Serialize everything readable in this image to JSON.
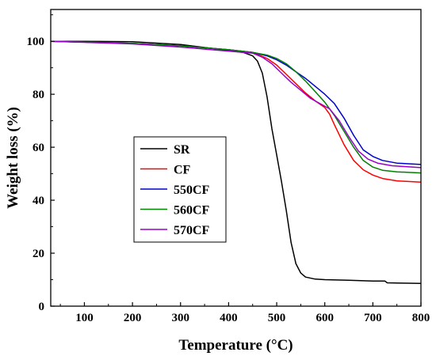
{
  "chart_data": {
    "type": "line",
    "title": "",
    "xlabel": "Temperature (°C)",
    "ylabel": "Weight loss (%)",
    "xlim": [
      30,
      800
    ],
    "ylim": [
      0,
      112
    ],
    "x_ticks": [
      100,
      200,
      300,
      400,
      500,
      600,
      700,
      800
    ],
    "y_ticks": [
      0,
      20,
      40,
      60,
      80,
      100
    ],
    "grid": false,
    "legend_position": "center-left",
    "series": [
      {
        "name": "SR",
        "color": "#000000",
        "points": [
          [
            30,
            100
          ],
          [
            100,
            100
          ],
          [
            200,
            99.8
          ],
          [
            300,
            98.8
          ],
          [
            400,
            96.5
          ],
          [
            430,
            95.8
          ],
          [
            450,
            94.5
          ],
          [
            460,
            92.5
          ],
          [
            470,
            88
          ],
          [
            480,
            79
          ],
          [
            490,
            67
          ],
          [
            500,
            57
          ],
          [
            510,
            47
          ],
          [
            520,
            36
          ],
          [
            530,
            24
          ],
          [
            540,
            16
          ],
          [
            550,
            12.5
          ],
          [
            560,
            11
          ],
          [
            580,
            10.2
          ],
          [
            600,
            10
          ],
          [
            650,
            9.8
          ],
          [
            700,
            9.5
          ],
          [
            725,
            9.5
          ],
          [
            730,
            8.8
          ],
          [
            760,
            8.7
          ],
          [
            800,
            8.6
          ]
        ]
      },
      {
        "name": "CF",
        "color": "#ff0000",
        "points": [
          [
            30,
            100
          ],
          [
            100,
            99.7
          ],
          [
            200,
            99.2
          ],
          [
            300,
            98.3
          ],
          [
            400,
            96.8
          ],
          [
            450,
            95.8
          ],
          [
            480,
            93.5
          ],
          [
            500,
            91
          ],
          [
            520,
            87.5
          ],
          [
            540,
            84
          ],
          [
            560,
            80.5
          ],
          [
            580,
            77.5
          ],
          [
            600,
            75
          ],
          [
            610,
            72.5
          ],
          [
            620,
            68.5
          ],
          [
            640,
            61
          ],
          [
            660,
            55
          ],
          [
            680,
            51.5
          ],
          [
            700,
            49.5
          ],
          [
            720,
            48.2
          ],
          [
            750,
            47.3
          ],
          [
            800,
            46.8
          ]
        ]
      },
      {
        "name": "550CF",
        "color": "#0000cc",
        "points": [
          [
            30,
            100
          ],
          [
            100,
            99.7
          ],
          [
            200,
            99.2
          ],
          [
            300,
            98.3
          ],
          [
            400,
            96.8
          ],
          [
            450,
            95.8
          ],
          [
            480,
            94.5
          ],
          [
            500,
            93
          ],
          [
            520,
            91
          ],
          [
            540,
            88.5
          ],
          [
            560,
            86
          ],
          [
            580,
            83
          ],
          [
            600,
            80
          ],
          [
            620,
            76.5
          ],
          [
            640,
            71
          ],
          [
            660,
            64.5
          ],
          [
            680,
            59
          ],
          [
            700,
            56.5
          ],
          [
            720,
            55
          ],
          [
            750,
            54
          ],
          [
            800,
            53.5
          ]
        ]
      },
      {
        "name": "560CF",
        "color": "#008000",
        "points": [
          [
            30,
            100
          ],
          [
            100,
            99.7
          ],
          [
            200,
            99.2
          ],
          [
            300,
            98.3
          ],
          [
            400,
            96.8
          ],
          [
            450,
            95.8
          ],
          [
            480,
            94.8
          ],
          [
            500,
            93.5
          ],
          [
            520,
            91.5
          ],
          [
            540,
            88.5
          ],
          [
            560,
            85
          ],
          [
            580,
            81
          ],
          [
            600,
            77
          ],
          [
            620,
            72
          ],
          [
            640,
            66
          ],
          [
            660,
            60
          ],
          [
            680,
            55
          ],
          [
            700,
            52.5
          ],
          [
            720,
            51.3
          ],
          [
            750,
            50.7
          ],
          [
            800,
            50.3
          ]
        ]
      },
      {
        "name": "570CF",
        "color": "#9900cc",
        "points": [
          [
            30,
            100
          ],
          [
            100,
            99.6
          ],
          [
            200,
            99
          ],
          [
            300,
            97.8
          ],
          [
            400,
            96.3
          ],
          [
            450,
            95.5
          ],
          [
            470,
            94
          ],
          [
            490,
            91.5
          ],
          [
            510,
            88
          ],
          [
            530,
            84.5
          ],
          [
            550,
            81.5
          ],
          [
            570,
            78.5
          ],
          [
            590,
            76.5
          ],
          [
            610,
            74.5
          ],
          [
            630,
            70
          ],
          [
            650,
            64
          ],
          [
            670,
            58.5
          ],
          [
            690,
            55.5
          ],
          [
            710,
            54
          ],
          [
            740,
            53
          ],
          [
            800,
            52.3
          ]
        ]
      }
    ]
  }
}
